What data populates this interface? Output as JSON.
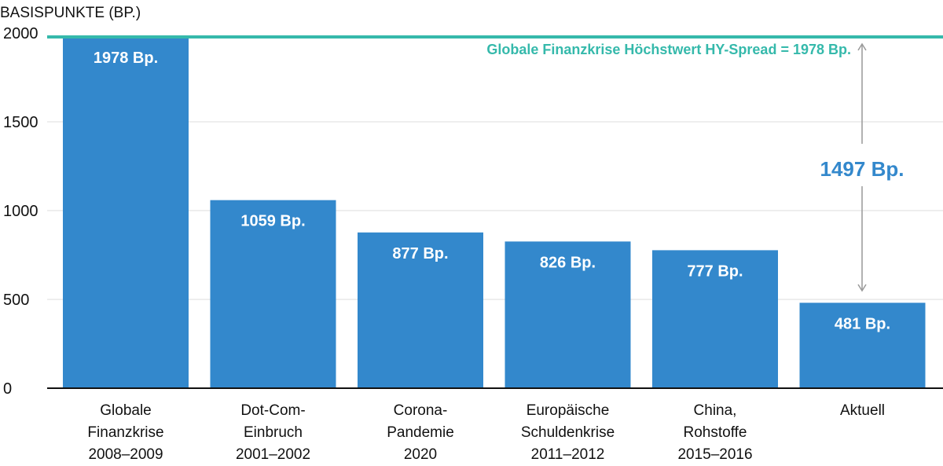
{
  "chart_data": {
    "type": "bar",
    "ylabel": "BASISPUNKTE (BP.)",
    "ylim": [
      0,
      2000
    ],
    "yticks": [
      "0",
      "500",
      "1000",
      "1500",
      "2000"
    ],
    "grid": true,
    "categories": [
      [
        "Globale",
        "Finanzkrise",
        "2008–2009"
      ],
      [
        "Dot-Com-",
        "Einbruch",
        "2001–2002"
      ],
      [
        "Corona-",
        "Pandemie",
        "2020"
      ],
      [
        "Europäische",
        "Schuldenkrise",
        "2011–2012"
      ],
      [
        "China,",
        "Rohstoffe",
        "2015–2016"
      ],
      [
        "Aktuell"
      ]
    ],
    "values": [
      1978,
      1059,
      877,
      826,
      777,
      481
    ],
    "data_labels": [
      "1978 Bp.",
      "1059 Bp.",
      "877 Bp.",
      "826 Bp.",
      "777 Bp.",
      "481 Bp."
    ],
    "reference_line": {
      "value": 1978,
      "label": "Globale Finanzkrise Höchstwert HY-Spread = 1978 Bp."
    },
    "difference_annotation": {
      "from": 1978,
      "to": 481,
      "label": "1497 Bp."
    },
    "colors": {
      "bar": "#3388cc",
      "reference": "#35b9ab",
      "difference_text": "#3388cc",
      "arrow": "#999999",
      "grid": "#dddddd",
      "axis": "#111111"
    }
  }
}
